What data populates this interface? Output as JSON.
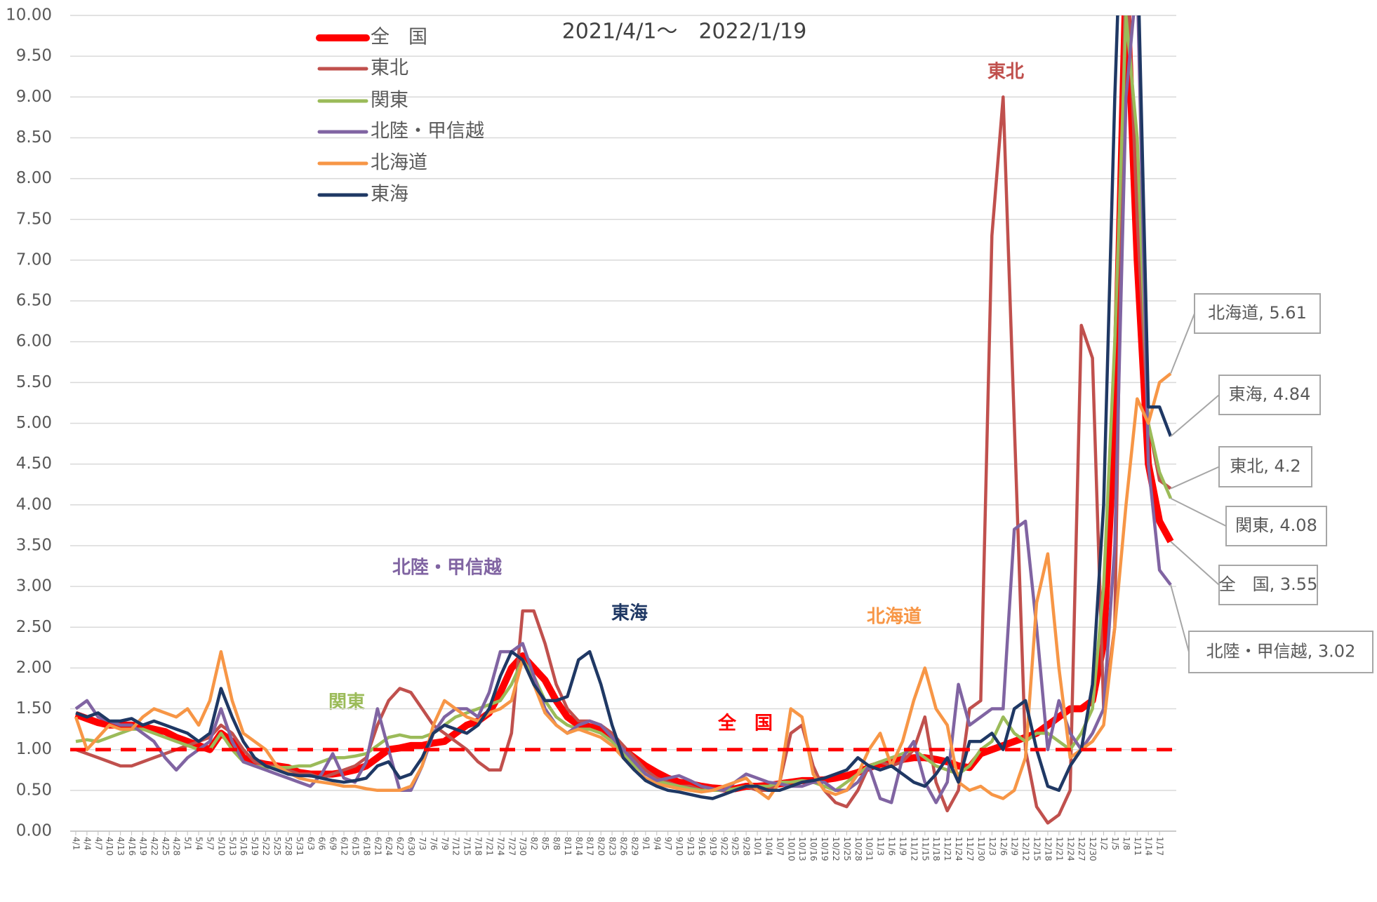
{
  "chart_data": {
    "type": "line",
    "title": "2021/4/1～　2022/1/19",
    "categories": [
      "4/1",
      "4/4",
      "4/7",
      "4/10",
      "4/13",
      "4/16",
      "4/19",
      "4/22",
      "4/25",
      "4/28",
      "5/1",
      "5/4",
      "5/7",
      "5/10",
      "5/13",
      "5/16",
      "5/19",
      "5/22",
      "5/25",
      "5/28",
      "5/31",
      "6/3",
      "6/6",
      "6/9",
      "6/12",
      "6/15",
      "6/18",
      "6/21",
      "6/24",
      "6/27",
      "6/30",
      "7/3",
      "7/6",
      "7/9",
      "7/12",
      "7/15",
      "7/18",
      "7/21",
      "7/24",
      "7/27",
      "7/30",
      "8/2",
      "8/5",
      "8/8",
      "8/11",
      "8/14",
      "8/17",
      "8/20",
      "8/23",
      "8/26",
      "8/29",
      "9/1",
      "9/4",
      "9/7",
      "9/10",
      "9/13",
      "9/16",
      "9/19",
      "9/22",
      "9/25",
      "9/28",
      "10/1",
      "10/4",
      "10/7",
      "10/10",
      "10/13",
      "10/16",
      "10/19",
      "10/22",
      "10/25",
      "10/28",
      "10/31",
      "11/3",
      "11/6",
      "11/9",
      "11/12",
      "11/15",
      "11/18",
      "11/21",
      "11/24",
      "11/27",
      "11/30",
      "12/3",
      "12/6",
      "12/9",
      "12/12",
      "12/15",
      "12/18",
      "12/21",
      "12/24",
      "12/27",
      "12/30",
      "1/2",
      "1/5",
      "1/8",
      "1/11",
      "1/14",
      "1/17",
      null
    ],
    "series": [
      {
        "name": "全　国",
        "color": "#ff0000",
        "end_label": "全　国, 3.55",
        "values": [
          1.43,
          1.38,
          1.33,
          1.3,
          1.3,
          1.3,
          1.28,
          1.25,
          1.22,
          1.15,
          1.1,
          1.05,
          1.0,
          1.2,
          1.1,
          0.9,
          0.85,
          0.82,
          0.8,
          0.78,
          0.72,
          0.7,
          0.7,
          0.7,
          0.72,
          0.75,
          0.8,
          0.9,
          1.0,
          1.02,
          1.05,
          1.05,
          1.08,
          1.1,
          1.2,
          1.3,
          1.35,
          1.45,
          1.7,
          2.0,
          2.15,
          2.0,
          1.85,
          1.6,
          1.4,
          1.3,
          1.28,
          1.25,
          1.15,
          1.0,
          0.9,
          0.8,
          0.72,
          0.65,
          0.6,
          0.58,
          0.55,
          0.53,
          0.52,
          0.52,
          0.55,
          0.55,
          0.56,
          0.58,
          0.6,
          0.62,
          0.62,
          0.63,
          0.65,
          0.68,
          0.72,
          0.78,
          0.82,
          0.85,
          0.88,
          0.9,
          0.9,
          0.88,
          0.85,
          0.8,
          0.78,
          0.95,
          1.0,
          1.05,
          1.1,
          1.15,
          1.2,
          1.3,
          1.4,
          1.5,
          1.5,
          1.6,
          2.3,
          5.0,
          10.5,
          7.0,
          4.5,
          3.8,
          3.55
        ]
      },
      {
        "name": "東北",
        "color": "#c0504d",
        "end_label": "東北, 4.2",
        "values": [
          1.0,
          0.95,
          0.9,
          0.85,
          0.8,
          0.8,
          0.85,
          0.9,
          0.95,
          1.0,
          1.05,
          1.1,
          1.15,
          1.3,
          1.2,
          1.0,
          0.85,
          0.8,
          0.8,
          0.75,
          0.7,
          0.7,
          0.65,
          0.7,
          0.75,
          0.8,
          0.9,
          1.3,
          1.6,
          1.75,
          1.7,
          1.5,
          1.3,
          1.2,
          1.1,
          1.0,
          0.85,
          0.75,
          0.75,
          1.2,
          2.7,
          2.7,
          2.3,
          1.8,
          1.5,
          1.35,
          1.35,
          1.3,
          1.2,
          1.05,
          0.9,
          0.75,
          0.65,
          0.6,
          0.55,
          0.55,
          0.5,
          0.5,
          0.5,
          0.5,
          0.55,
          0.5,
          0.5,
          0.6,
          1.2,
          1.3,
          0.8,
          0.5,
          0.35,
          0.3,
          0.5,
          0.8,
          0.85,
          0.8,
          0.85,
          1.0,
          1.4,
          0.6,
          0.25,
          0.5,
          1.5,
          1.6,
          7.3,
          9.0,
          5.0,
          1.0,
          0.3,
          0.1,
          0.2,
          0.5,
          6.2,
          5.8,
          1.5,
          2.5,
          11.0,
          7.5,
          5.0,
          4.3,
          4.2
        ]
      },
      {
        "name": "関東",
        "color": "#9bbb59",
        "end_label": "関東, 4.08",
        "values": [
          1.1,
          1.12,
          1.1,
          1.15,
          1.2,
          1.25,
          1.25,
          1.2,
          1.15,
          1.1,
          1.05,
          1.0,
          1.0,
          1.2,
          1.0,
          0.85,
          0.8,
          0.78,
          0.78,
          0.78,
          0.8,
          0.8,
          0.85,
          0.9,
          0.9,
          0.92,
          0.95,
          1.05,
          1.15,
          1.18,
          1.15,
          1.15,
          1.2,
          1.3,
          1.4,
          1.45,
          1.5,
          1.55,
          1.6,
          1.8,
          2.1,
          1.9,
          1.6,
          1.4,
          1.3,
          1.25,
          1.25,
          1.2,
          1.1,
          0.95,
          0.8,
          0.7,
          0.62,
          0.58,
          0.55,
          0.52,
          0.5,
          0.5,
          0.5,
          0.52,
          0.55,
          0.55,
          0.55,
          0.6,
          0.6,
          0.62,
          0.6,
          0.55,
          0.5,
          0.6,
          0.7,
          0.8,
          0.85,
          0.9,
          0.95,
          1.0,
          0.9,
          0.8,
          0.75,
          0.7,
          0.8,
          1.0,
          1.1,
          1.4,
          1.2,
          1.1,
          1.2,
          1.2,
          1.1,
          1.0,
          1.2,
          1.5,
          3.0,
          6.0,
          10.0,
          8.5,
          5.0,
          4.4,
          4.08
        ]
      },
      {
        "name": "北陸・甲信越",
        "color": "#8064a2",
        "end_label": "北陸・甲信越, 3.02",
        "values": [
          1.5,
          1.6,
          1.4,
          1.35,
          1.3,
          1.3,
          1.2,
          1.1,
          0.9,
          0.75,
          0.9,
          1.0,
          1.1,
          1.5,
          1.1,
          0.85,
          0.8,
          0.75,
          0.7,
          0.65,
          0.6,
          0.55,
          0.7,
          0.95,
          0.65,
          0.6,
          0.85,
          1.5,
          1.0,
          0.5,
          0.5,
          0.8,
          1.2,
          1.4,
          1.5,
          1.5,
          1.4,
          1.7,
          2.2,
          2.2,
          2.3,
          1.9,
          1.5,
          1.3,
          1.2,
          1.3,
          1.35,
          1.3,
          1.15,
          1.0,
          0.85,
          0.7,
          0.62,
          0.65,
          0.68,
          0.62,
          0.55,
          0.52,
          0.5,
          0.6,
          0.7,
          0.65,
          0.6,
          0.58,
          0.55,
          0.55,
          0.6,
          0.6,
          0.5,
          0.5,
          0.6,
          0.8,
          0.4,
          0.35,
          0.9,
          1.1,
          0.6,
          0.35,
          0.6,
          1.8,
          1.3,
          1.4,
          1.5,
          1.5,
          3.7,
          3.8,
          2.5,
          1.0,
          1.6,
          1.2,
          1.0,
          1.2,
          1.5,
          3.5,
          9.0,
          10.5,
          4.5,
          3.2,
          3.02
        ]
      },
      {
        "name": "北海道",
        "color": "#f79646",
        "end_label": "北海道, 5.61",
        "values": [
          1.4,
          1.0,
          1.15,
          1.3,
          1.25,
          1.25,
          1.4,
          1.5,
          1.45,
          1.4,
          1.5,
          1.3,
          1.6,
          2.2,
          1.6,
          1.2,
          1.1,
          1.0,
          0.8,
          0.72,
          0.65,
          0.62,
          0.6,
          0.58,
          0.55,
          0.55,
          0.52,
          0.5,
          0.5,
          0.5,
          0.55,
          0.8,
          1.3,
          1.6,
          1.5,
          1.4,
          1.35,
          1.45,
          1.5,
          1.6,
          2.1,
          1.8,
          1.45,
          1.3,
          1.2,
          1.25,
          1.2,
          1.15,
          1.05,
          0.9,
          0.75,
          0.65,
          0.58,
          0.55,
          0.52,
          0.5,
          0.48,
          0.5,
          0.55,
          0.6,
          0.65,
          0.5,
          0.4,
          0.6,
          1.5,
          1.4,
          0.7,
          0.5,
          0.45,
          0.5,
          0.7,
          1.0,
          1.2,
          0.8,
          1.1,
          1.6,
          2.0,
          1.5,
          1.3,
          0.6,
          0.5,
          0.55,
          0.45,
          0.4,
          0.5,
          0.9,
          2.8,
          3.4,
          2.0,
          0.9,
          1.0,
          1.1,
          1.3,
          2.5,
          4.0,
          5.3,
          5.0,
          5.5,
          5.61
        ]
      },
      {
        "name": "東海",
        "color": "#1f3864",
        "end_label": "東海, 4.84",
        "values": [
          1.45,
          1.4,
          1.45,
          1.35,
          1.35,
          1.38,
          1.3,
          1.35,
          1.3,
          1.25,
          1.2,
          1.1,
          1.2,
          1.75,
          1.4,
          1.1,
          0.9,
          0.8,
          0.75,
          0.7,
          0.68,
          0.68,
          0.65,
          0.62,
          0.6,
          0.62,
          0.65,
          0.8,
          0.85,
          0.65,
          0.7,
          0.9,
          1.2,
          1.3,
          1.25,
          1.2,
          1.3,
          1.5,
          1.9,
          2.2,
          2.1,
          1.8,
          1.6,
          1.6,
          1.65,
          2.1,
          2.2,
          1.8,
          1.3,
          0.9,
          0.75,
          0.62,
          0.55,
          0.5,
          0.48,
          0.45,
          0.42,
          0.4,
          0.45,
          0.5,
          0.55,
          0.55,
          0.5,
          0.5,
          0.55,
          0.6,
          0.62,
          0.65,
          0.7,
          0.75,
          0.9,
          0.8,
          0.75,
          0.8,
          0.7,
          0.6,
          0.55,
          0.7,
          0.9,
          0.6,
          1.1,
          1.1,
          1.2,
          1.0,
          1.5,
          1.6,
          1.0,
          0.55,
          0.5,
          0.8,
          1.0,
          1.8,
          4.0,
          9.0,
          13.0,
          11.0,
          5.2,
          5.2,
          4.84
        ]
      }
    ],
    "reference_line": {
      "value": 1,
      "color": "#ff0000"
    },
    "annotations": [
      {
        "text": "東北",
        "color": "#c0504d"
      },
      {
        "text": "北陸・甲信越",
        "color": "#8064a2"
      },
      {
        "text": "東海",
        "color": "#1f3864"
      },
      {
        "text": "関東",
        "color": "#9bbb59"
      },
      {
        "text": "全　国",
        "color": "#ff0000"
      },
      {
        "text": "北海道",
        "color": "#f79646"
      }
    ],
    "ylim": [
      0,
      10
    ],
    "yticks": [
      {
        "value": 0,
        "label": "0.00"
      },
      {
        "value": 0.5,
        "label": "0.50"
      },
      {
        "value": 1,
        "label": "1.00"
      },
      {
        "value": 1.5,
        "label": "1.50"
      },
      {
        "value": 2,
        "label": "2.00"
      },
      {
        "value": 2.5,
        "label": "2.50"
      },
      {
        "value": 3,
        "label": "3.00"
      },
      {
        "value": 3.5,
        "label": "3.50"
      },
      {
        "value": 4,
        "label": "4.00"
      },
      {
        "value": 4.5,
        "label": "4.50"
      },
      {
        "value": 5,
        "label": "5.00"
      },
      {
        "value": 5.5,
        "label": "5.50"
      },
      {
        "value": 6,
        "label": "6.00"
      },
      {
        "value": 6.5,
        "label": "6.50"
      },
      {
        "value": 7,
        "label": "7.00"
      },
      {
        "value": 7.5,
        "label": "7.50"
      },
      {
        "value": 8,
        "label": "8.00"
      },
      {
        "value": 8.5,
        "label": "8.50"
      },
      {
        "value": 9,
        "label": "9.00"
      },
      {
        "value": 9.5,
        "label": "9.50"
      },
      {
        "value": 10,
        "label": "10.00"
      }
    ],
    "grid": true,
    "legend": "top-left"
  }
}
